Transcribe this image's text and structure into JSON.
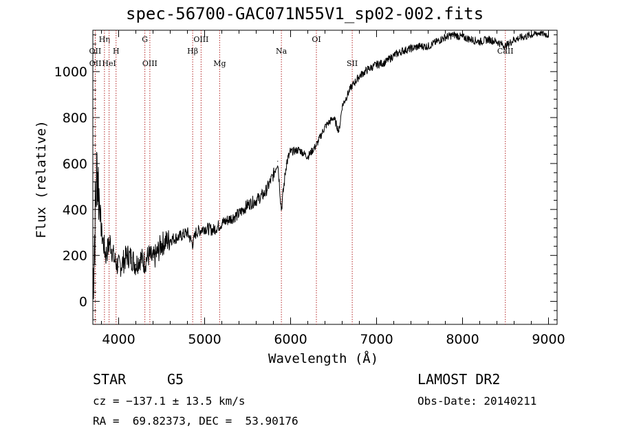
{
  "chart_data": {
    "type": "line",
    "title": "spec-56700-GAC071N55V1_sp02-002.fits",
    "xlabel": "Wavelength (Å)",
    "ylabel": "Flux (relative)",
    "xlim": [
      3700,
      9100
    ],
    "ylim": [
      -100,
      1180
    ],
    "xticks": [
      4000,
      5000,
      6000,
      7000,
      8000,
      9000
    ],
    "yticks": [
      0,
      200,
      400,
      600,
      800,
      1000
    ],
    "grid": false,
    "series": [
      {
        "x": [
          3700,
          3750,
          3800,
          3850,
          3900,
          3950,
          4000,
          4050,
          4100,
          4150,
          4200,
          4250,
          4300,
          4350,
          4400,
          4450,
          4500,
          4600,
          4700,
          4800,
          4861,
          4900,
          5000,
          5100,
          5200,
          5300,
          5400,
          5500,
          5600,
          5700,
          5800,
          5850,
          5893,
          5950,
          6000,
          6100,
          6200,
          6300,
          6400,
          6500,
          6563,
          6600,
          6700,
          6800,
          6900,
          7000,
          7100,
          7200,
          7300,
          7400,
          7500,
          7600,
          7700,
          7800,
          7900,
          8000,
          8100,
          8200,
          8300,
          8400,
          8500,
          8600,
          8700,
          8800,
          8900,
          9000
        ],
        "y": [
          80,
          600,
          300,
          200,
          260,
          180,
          150,
          170,
          200,
          190,
          160,
          190,
          170,
          200,
          180,
          210,
          250,
          270,
          280,
          300,
          250,
          300,
          320,
          310,
          340,
          360,
          380,
          420,
          440,
          470,
          550,
          610,
          400,
          600,
          650,
          660,
          630,
          680,
          760,
          800,
          740,
          850,
          930,
          980,
          1010,
          1030,
          1040,
          1070,
          1090,
          1100,
          1110,
          1110,
          1130,
          1150,
          1160,
          1150,
          1140,
          1130,
          1140,
          1130,
          1110,
          1140,
          1150,
          1160,
          1170,
          1160
        ]
      }
    ],
    "lines": [
      {
        "label": "OII",
        "x": 3727,
        "row": 2
      },
      {
        "label": "OII",
        "x": 3729,
        "row": 3
      },
      {
        "label": "Hη",
        "x": 3835,
        "row": 1
      },
      {
        "label": "HeI",
        "x": 3889,
        "row": 3
      },
      {
        "label": "H",
        "x": 3970,
        "row": 2
      },
      {
        "label": "G",
        "x": 4305,
        "row": 1
      },
      {
        "label": "OIII",
        "x": 4363,
        "row": 3
      },
      {
        "label": "Hβ",
        "x": 4861,
        "row": 2
      },
      {
        "label": "OIII",
        "x": 4959,
        "row": 1
      },
      {
        "label": "Mg",
        "x": 5175,
        "row": 3
      },
      {
        "label": "Na",
        "x": 5893,
        "row": 2
      },
      {
        "label": "OI",
        "x": 6300,
        "row": 1
      },
      {
        "label": "SII",
        "x": 6717,
        "row": 3
      },
      {
        "label": "CaII",
        "x": 8498,
        "row": 2
      }
    ],
    "line_color": "#b22222"
  },
  "footer": {
    "object_class": "STAR",
    "subclass": "G5",
    "survey": "LAMOST DR2",
    "cz": "cz = −137.1 ± 13.5 km/s",
    "obs_date": "Obs-Date: 20140211",
    "coords": "RA =  69.82373, DEC =  53.90176"
  }
}
